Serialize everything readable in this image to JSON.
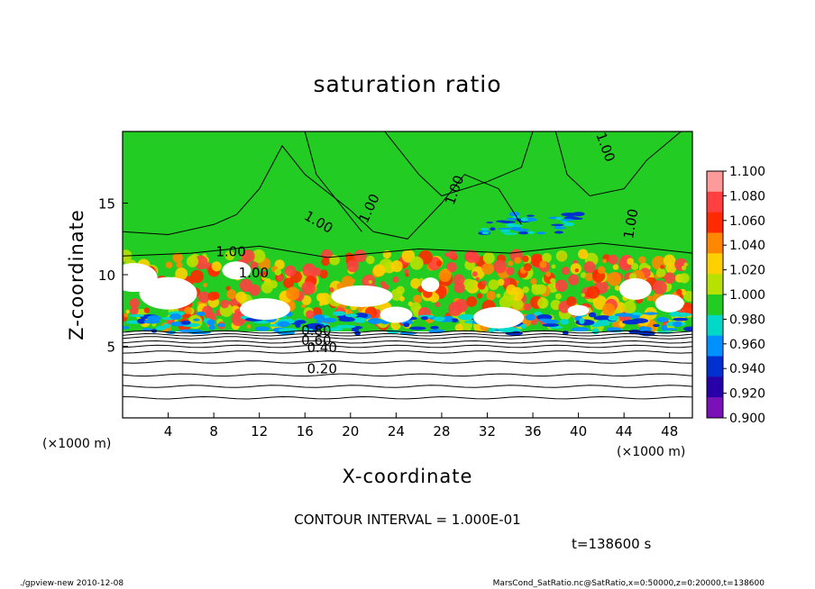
{
  "chart_data": {
    "type": "heatmap",
    "title": "saturation ratio",
    "xlabel": "X-coordinate",
    "ylabel": "Z-coordinate",
    "x_unit": "(×1000 m)",
    "z_unit": "(×1000 m)",
    "xlim": [
      0,
      50
    ],
    "ylim": [
      0,
      20
    ],
    "x_ticks": [
      "4",
      "8",
      "12",
      "16",
      "20",
      "24",
      "28",
      "32",
      "36",
      "40",
      "44",
      "48"
    ],
    "y_ticks": [
      "5",
      "10",
      "15"
    ],
    "colorbar": {
      "labels": [
        "1.100",
        "1.080",
        "1.060",
        "1.040",
        "1.020",
        "1.000",
        "0.980",
        "0.960",
        "0.940",
        "0.920",
        "0.900"
      ],
      "colors": [
        "#ff9a9a",
        "#ff4040",
        "#ff2a00",
        "#ff8800",
        "#ffd000",
        "#b8e000",
        "#22cc22",
        "#00d8c8",
        "#0090ff",
        "#0030d0",
        "#2800a8",
        "#7a10b8"
      ]
    },
    "contour_labels": [
      "1.00",
      "1.00",
      "1.00",
      "1.00",
      "1.00",
      "1.00",
      "1.00",
      "0.80",
      "0.60",
      "0.40",
      "0.20"
    ],
    "contour_interval_text": "CONTOUR INTERVAL = 1.000E-01",
    "time_text": "t=138600 s"
  },
  "footer": {
    "left": "./gpview-new  2010-12-08",
    "right": "MarsCond_SatRatio.nc@SatRatio,x=0:50000,z=0:20000,t=138600"
  }
}
